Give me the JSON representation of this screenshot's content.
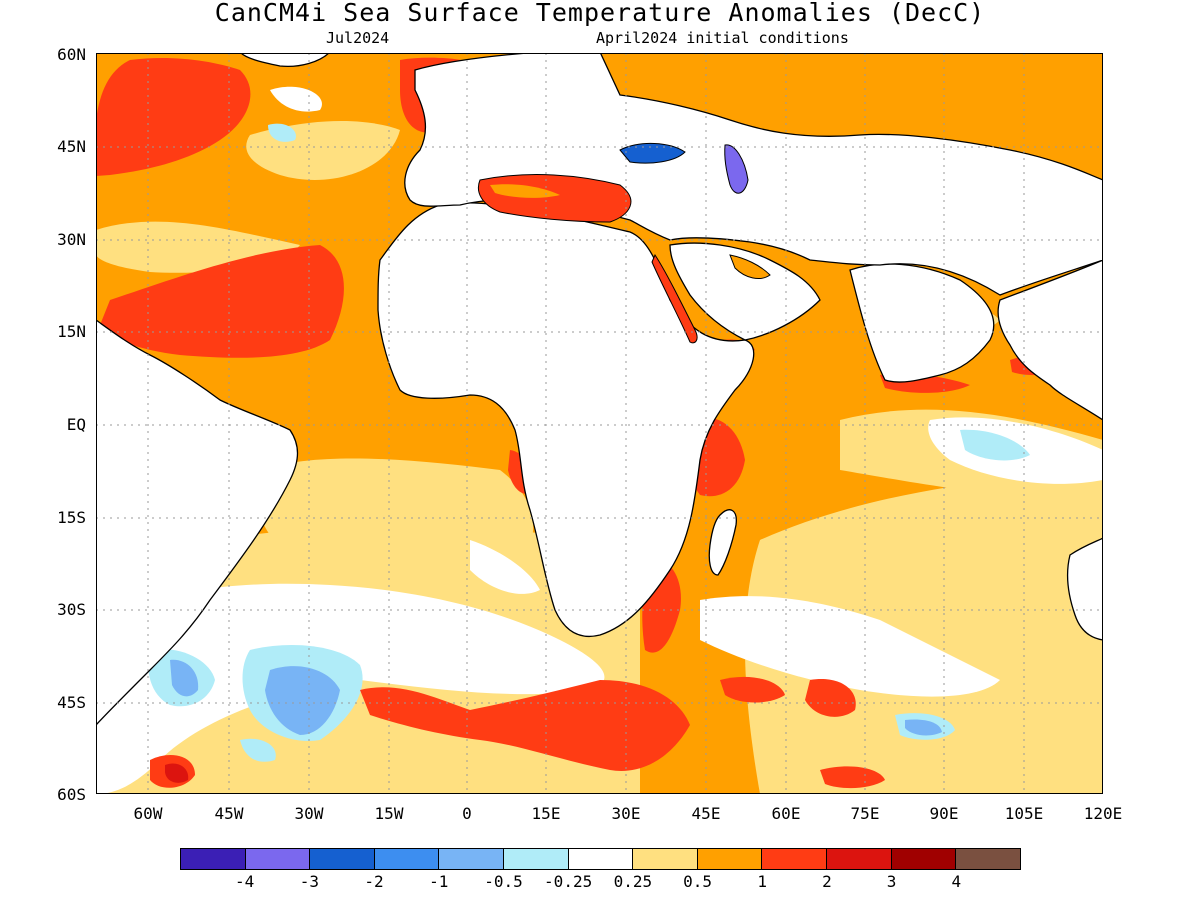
{
  "title": "CanCM4i Sea Surface Temperature Anomalies (DecC)",
  "subtitle_left": "Jul2024",
  "subtitle_right": "April2024 initial conditions",
  "lat_labels": [
    "60N",
    "45N",
    "30N",
    "15N",
    "EQ",
    "15S",
    "30S",
    "45S",
    "60S"
  ],
  "lon_labels": [
    "60W",
    "45W",
    "30W",
    "15W",
    "0",
    "15E",
    "30E",
    "45E",
    "60E",
    "75E",
    "90E",
    "105E",
    "120E"
  ],
  "colorbar": {
    "colors": [
      "#3b1fb5",
      "#7b68ee",
      "#1560d0",
      "#3d8ef0",
      "#78b4f5",
      "#b0ecf8",
      "#ffffff",
      "#ffe080",
      "#ffa000",
      "#ff3c14",
      "#dc140f",
      "#a00000",
      "#7a5040"
    ],
    "labels": [
      "-4",
      "-3",
      "-2",
      "-1",
      "-0.5",
      "-0.25",
      "0.25",
      "0.5",
      "1",
      "2",
      "3",
      "4"
    ]
  }
}
